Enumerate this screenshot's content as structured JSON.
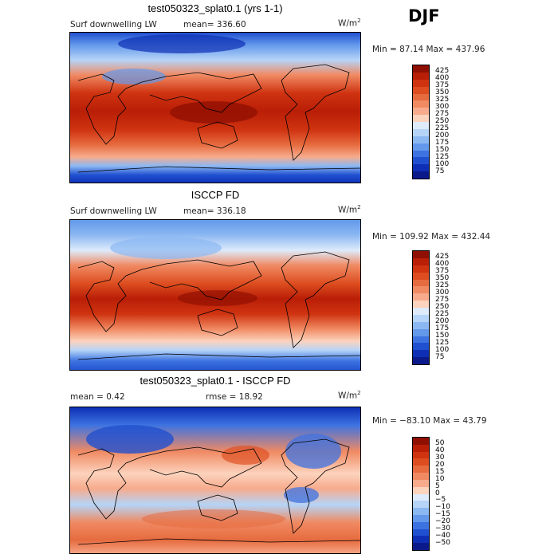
{
  "season": "DJF",
  "chart_data": [
    {
      "type": "heatmap",
      "title": "test050323_splat0.1 (yrs 1-1)",
      "field": "Surf downwelling LW",
      "stat_text": "mean=  336.60",
      "units": "W/m",
      "units_exp": "2",
      "minmax": "Min =   87.14 Max = 437.96",
      "mean": 336.6,
      "min": 87.14,
      "max": 437.96,
      "levels": [
        425,
        400,
        375,
        350,
        325,
        300,
        275,
        250,
        225,
        200,
        175,
        150,
        125,
        100,
        75
      ],
      "colors": [
        "#8f0f02",
        "#b91e07",
        "#cf3310",
        "#dd4d1f",
        "#e66b3f",
        "#f08a63",
        "#f7ab8c",
        "#fcd3bd",
        "#ddebfb",
        "#b5d4f7",
        "#8cb8f2",
        "#6398eb",
        "#3d73e1",
        "#2050d0",
        "#0e2fb5",
        "#0b1a8a"
      ]
    },
    {
      "type": "heatmap",
      "title": "ISCCP FD",
      "field": "Surf downwelling LW",
      "stat_text": "mean=  336.18",
      "units": "W/m",
      "units_exp": "2",
      "minmax": "Min = 109.92 Max = 432.44",
      "mean": 336.18,
      "min": 109.92,
      "max": 432.44,
      "levels": [
        425,
        400,
        375,
        350,
        325,
        300,
        275,
        250,
        225,
        200,
        175,
        150,
        125,
        100,
        75
      ],
      "colors": [
        "#8f0f02",
        "#b91e07",
        "#cf3310",
        "#dd4d1f",
        "#e66b3f",
        "#f08a63",
        "#f7ab8c",
        "#fcd3bd",
        "#ddebfb",
        "#b5d4f7",
        "#8cb8f2",
        "#6398eb",
        "#3d73e1",
        "#2050d0",
        "#0e2fb5",
        "#0b1a8a"
      ]
    },
    {
      "type": "heatmap",
      "title": "test050323_splat0.1 - ISCCP FD",
      "stat_text": "mean =     0.42",
      "stat2_text": "rmse =   18.92",
      "units": "W/m",
      "units_exp": "2",
      "minmax": "Min = −83.10 Max =   43.79",
      "mean": 0.42,
      "rmse": 18.92,
      "min": -83.1,
      "max": 43.79,
      "levels": [
        "50",
        "40",
        "30",
        "20",
        "15",
        "10",
        "5",
        "0",
        "−5",
        "−10",
        "−15",
        "−20",
        "−30",
        "−40",
        "−50"
      ],
      "colors": [
        "#8f0f02",
        "#b91e07",
        "#cf3310",
        "#dd4d1f",
        "#e66b3f",
        "#f08a63",
        "#f7ab8c",
        "#fcd3bd",
        "#ddebfb",
        "#b5d4f7",
        "#8cb8f2",
        "#6398eb",
        "#3d73e1",
        "#2050d0",
        "#0e2fb5",
        "#0b1a8a"
      ]
    }
  ]
}
